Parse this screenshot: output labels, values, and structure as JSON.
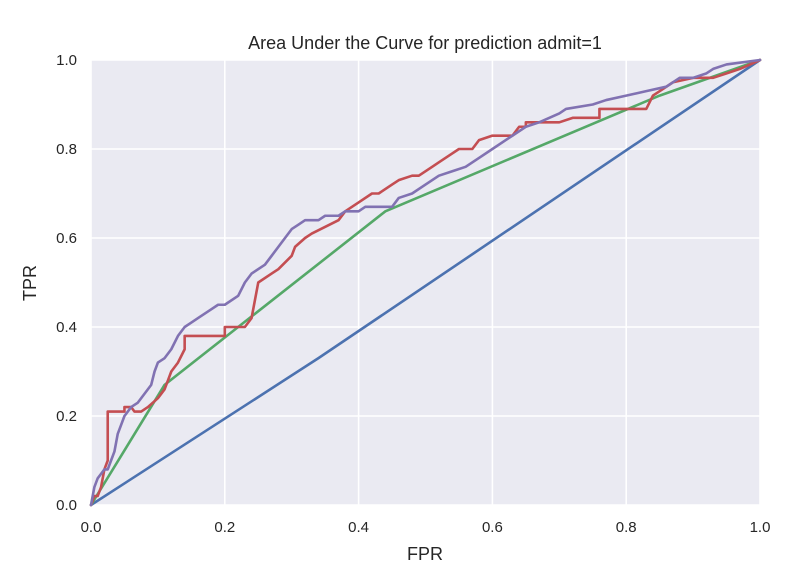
{
  "chart_data": {
    "type": "line",
    "title": "Area Under the Curve for prediction admit=1",
    "xlabel": "FPR",
    "ylabel": "TPR",
    "xlim": [
      0,
      1
    ],
    "ylim": [
      0,
      1
    ],
    "xticks": [
      "0.0",
      "0.2",
      "0.4",
      "0.6",
      "0.8",
      "1.0"
    ],
    "yticks": [
      "0.0",
      "0.2",
      "0.4",
      "0.6",
      "0.8",
      "1.0"
    ],
    "grid": true,
    "background": "#eaeaf2",
    "gridcolor": "#ffffff",
    "series": [
      {
        "color": "#4c72b0",
        "x": [
          0.0,
          0.34,
          1.0
        ],
        "y": [
          0.0,
          0.33,
          1.0
        ]
      },
      {
        "color": "#55a868",
        "x": [
          0.0,
          0.11,
          0.44,
          0.85,
          1.0
        ],
        "y": [
          0.0,
          0.27,
          0.66,
          0.92,
          1.0
        ]
      },
      {
        "color": "#c44e52",
        "x": [
          0.0,
          0.005,
          0.01,
          0.015,
          0.02,
          0.025,
          0.025,
          0.05,
          0.05,
          0.06,
          0.065,
          0.075,
          0.085,
          0.1,
          0.11,
          0.115,
          0.12,
          0.13,
          0.14,
          0.14,
          0.2,
          0.2,
          0.23,
          0.24,
          0.245,
          0.25,
          0.27,
          0.28,
          0.3,
          0.305,
          0.32,
          0.33,
          0.37,
          0.38,
          0.4,
          0.42,
          0.43,
          0.45,
          0.46,
          0.48,
          0.49,
          0.51,
          0.52,
          0.54,
          0.55,
          0.57,
          0.58,
          0.6,
          0.63,
          0.64,
          0.65,
          0.65,
          0.7,
          0.72,
          0.76,
          0.76,
          0.82,
          0.83,
          0.84,
          0.85,
          0.87,
          0.9,
          0.93,
          0.95,
          0.97,
          1.0
        ],
        "y": [
          0.0,
          0.02,
          0.02,
          0.04,
          0.08,
          0.1,
          0.21,
          0.21,
          0.22,
          0.22,
          0.21,
          0.21,
          0.22,
          0.24,
          0.26,
          0.28,
          0.3,
          0.32,
          0.35,
          0.38,
          0.38,
          0.4,
          0.4,
          0.42,
          0.46,
          0.5,
          0.52,
          0.53,
          0.56,
          0.58,
          0.6,
          0.61,
          0.64,
          0.66,
          0.68,
          0.7,
          0.7,
          0.72,
          0.73,
          0.74,
          0.74,
          0.76,
          0.77,
          0.79,
          0.8,
          0.8,
          0.82,
          0.83,
          0.83,
          0.85,
          0.85,
          0.86,
          0.86,
          0.87,
          0.87,
          0.89,
          0.89,
          0.89,
          0.92,
          0.93,
          0.95,
          0.96,
          0.96,
          0.97,
          0.98,
          1.0
        ]
      },
      {
        "color": "#8172b2",
        "x": [
          0.0,
          0.005,
          0.01,
          0.015,
          0.02,
          0.025,
          0.03,
          0.035,
          0.04,
          0.045,
          0.05,
          0.06,
          0.07,
          0.08,
          0.09,
          0.095,
          0.1,
          0.11,
          0.12,
          0.13,
          0.14,
          0.15,
          0.16,
          0.18,
          0.19,
          0.2,
          0.22,
          0.23,
          0.24,
          0.26,
          0.27,
          0.29,
          0.3,
          0.31,
          0.32,
          0.34,
          0.35,
          0.37,
          0.38,
          0.4,
          0.41,
          0.45,
          0.46,
          0.48,
          0.5,
          0.52,
          0.54,
          0.56,
          0.58,
          0.6,
          0.62,
          0.63,
          0.65,
          0.67,
          0.7,
          0.71,
          0.75,
          0.77,
          0.8,
          0.83,
          0.86,
          0.88,
          0.9,
          0.92,
          0.93,
          0.95,
          1.0
        ],
        "y": [
          0.0,
          0.04,
          0.06,
          0.07,
          0.08,
          0.08,
          0.1,
          0.12,
          0.16,
          0.18,
          0.2,
          0.22,
          0.23,
          0.25,
          0.27,
          0.3,
          0.32,
          0.33,
          0.35,
          0.38,
          0.4,
          0.41,
          0.42,
          0.44,
          0.45,
          0.45,
          0.47,
          0.5,
          0.52,
          0.54,
          0.56,
          0.6,
          0.62,
          0.63,
          0.64,
          0.64,
          0.65,
          0.65,
          0.66,
          0.66,
          0.67,
          0.67,
          0.69,
          0.7,
          0.72,
          0.74,
          0.75,
          0.76,
          0.78,
          0.8,
          0.82,
          0.83,
          0.85,
          0.86,
          0.88,
          0.89,
          0.9,
          0.91,
          0.92,
          0.93,
          0.94,
          0.96,
          0.96,
          0.97,
          0.98,
          0.99,
          1.0
        ]
      }
    ]
  }
}
